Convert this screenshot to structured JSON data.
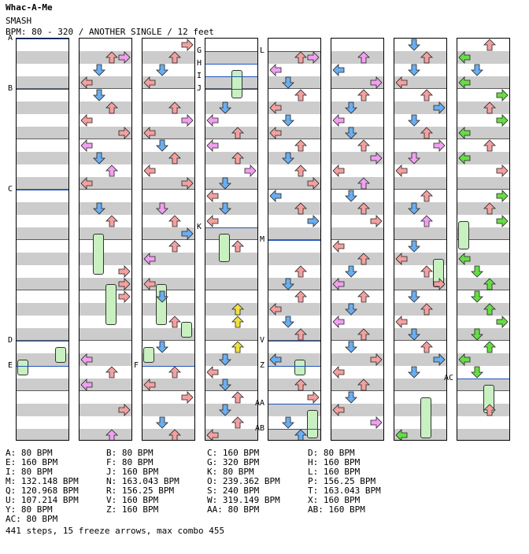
{
  "header": {
    "title": "Whac-A-Me",
    "subtitle": "SMASH",
    "info": "BPM: 80 - 320 / ANOTHER SINGLE / 12 feet"
  },
  "colors": {
    "left": "#f4a0a0",
    "down": "#6aaef0",
    "up": "#f4a0a0",
    "right": "#f4a0a0",
    "alt": "#f0a0f0",
    "green": "#66dd44",
    "yellow": "#f0e040"
  },
  "markers": [
    {
      "col": 0,
      "row": 0,
      "label": "A"
    },
    {
      "col": 0,
      "row": 4,
      "label": "B"
    },
    {
      "col": 0,
      "row": 12,
      "label": "C"
    },
    {
      "col": 0,
      "row": 24,
      "label": "D"
    },
    {
      "col": 0,
      "row": 26,
      "label": "E"
    },
    {
      "col": 2,
      "row": 26,
      "label": "F"
    },
    {
      "col": 3,
      "row": 1,
      "label": "G"
    },
    {
      "col": 3,
      "row": 2,
      "label": "H"
    },
    {
      "col": 3,
      "row": 3,
      "label": "I"
    },
    {
      "col": 3,
      "row": 4,
      "label": "J"
    },
    {
      "col": 3,
      "row": 15,
      "label": "K"
    },
    {
      "col": 4,
      "row": 1,
      "label": "L"
    },
    {
      "col": 4,
      "row": 16,
      "label": "M"
    },
    {
      "col": 4,
      "row": 24,
      "label": "V"
    },
    {
      "col": 4,
      "row": 26,
      "label": "Z"
    },
    {
      "col": 4,
      "row": 29,
      "label": "AA"
    },
    {
      "col": 4,
      "row": 31,
      "label": "AB"
    },
    {
      "col": 7,
      "row": 27,
      "label": "AC"
    }
  ],
  "arrows": [
    [
      1,
      1,
      "up",
      "red"
    ],
    [
      1,
      1,
      "right",
      "alt"
    ],
    [
      1,
      2,
      "down",
      "blue"
    ],
    [
      1,
      3,
      "left",
      "red"
    ],
    [
      1,
      4,
      "down",
      "blue"
    ],
    [
      1,
      5,
      "up",
      "red"
    ],
    [
      1,
      6,
      "left",
      "red"
    ],
    [
      1,
      7,
      "right",
      "red"
    ],
    [
      1,
      8,
      "left",
      "alt"
    ],
    [
      1,
      9,
      "down",
      "blue"
    ],
    [
      1,
      10,
      "up",
      "alt"
    ],
    [
      1,
      11,
      "left",
      "red"
    ],
    [
      1,
      13,
      "down",
      "blue"
    ],
    [
      1,
      14,
      "up",
      "red"
    ],
    [
      1,
      18,
      "right",
      "red"
    ],
    [
      1,
      19,
      "right",
      "red"
    ],
    [
      1,
      20,
      "right",
      "red"
    ],
    [
      1,
      25,
      "left",
      "alt"
    ],
    [
      1,
      26,
      "up",
      "red"
    ],
    [
      1,
      27,
      "left",
      "alt"
    ],
    [
      1,
      29,
      "right",
      "red"
    ],
    [
      1,
      31,
      "up",
      "alt"
    ],
    [
      2,
      0,
      "right",
      "red"
    ],
    [
      2,
      1,
      "up",
      "red"
    ],
    [
      2,
      2,
      "down",
      "blue"
    ],
    [
      2,
      3,
      "left",
      "red"
    ],
    [
      2,
      5,
      "up",
      "red"
    ],
    [
      2,
      6,
      "right",
      "alt"
    ],
    [
      2,
      7,
      "left",
      "red"
    ],
    [
      2,
      8,
      "down",
      "blue"
    ],
    [
      2,
      9,
      "up",
      "red"
    ],
    [
      2,
      10,
      "left",
      "red"
    ],
    [
      2,
      11,
      "right",
      "red"
    ],
    [
      2,
      13,
      "down",
      "alt"
    ],
    [
      2,
      14,
      "up",
      "red"
    ],
    [
      2,
      15,
      "right",
      "blue"
    ],
    [
      2,
      16,
      "up",
      "red"
    ],
    [
      2,
      17,
      "left",
      "alt"
    ],
    [
      2,
      19,
      "left",
      "red"
    ],
    [
      2,
      20,
      "down",
      "blue"
    ],
    [
      2,
      22,
      "up",
      "red"
    ],
    [
      2,
      24,
      "down",
      "blue"
    ],
    [
      2,
      26,
      "up",
      "red"
    ],
    [
      2,
      27,
      "left",
      "red"
    ],
    [
      2,
      28,
      "right",
      "red"
    ],
    [
      2,
      30,
      "down",
      "blue"
    ],
    [
      2,
      31,
      "up",
      "red"
    ],
    [
      3,
      5,
      "down",
      "blue"
    ],
    [
      3,
      6,
      "left",
      "alt"
    ],
    [
      3,
      7,
      "up",
      "red"
    ],
    [
      3,
      8,
      "left",
      "alt"
    ],
    [
      3,
      9,
      "up",
      "red"
    ],
    [
      3,
      10,
      "right",
      "alt"
    ],
    [
      3,
      11,
      "down",
      "blue"
    ],
    [
      3,
      12,
      "left",
      "red"
    ],
    [
      3,
      13,
      "down",
      "blue"
    ],
    [
      3,
      14,
      "left",
      "red"
    ],
    [
      3,
      16,
      "up",
      "red"
    ],
    [
      3,
      21,
      "up",
      "yellow"
    ],
    [
      3,
      22,
      "up",
      "yellow"
    ],
    [
      3,
      24,
      "up",
      "yellow"
    ],
    [
      3,
      25,
      "down",
      "blue"
    ],
    [
      3,
      26,
      "left",
      "red"
    ],
    [
      3,
      27,
      "down",
      "blue"
    ],
    [
      3,
      28,
      "up",
      "red"
    ],
    [
      3,
      29,
      "down",
      "blue"
    ],
    [
      3,
      30,
      "up",
      "red"
    ],
    [
      3,
      31,
      "left",
      "red"
    ],
    [
      4,
      1,
      "up",
      "red"
    ],
    [
      4,
      1,
      "right",
      "alt"
    ],
    [
      4,
      2,
      "left",
      "alt"
    ],
    [
      4,
      3,
      "down",
      "blue"
    ],
    [
      4,
      4,
      "up",
      "red"
    ],
    [
      4,
      5,
      "left",
      "red"
    ],
    [
      4,
      6,
      "down",
      "blue"
    ],
    [
      4,
      7,
      "left",
      "red"
    ],
    [
      4,
      8,
      "up",
      "red"
    ],
    [
      4,
      9,
      "down",
      "blue"
    ],
    [
      4,
      10,
      "up",
      "red"
    ],
    [
      4,
      11,
      "right",
      "red"
    ],
    [
      4,
      12,
      "left",
      "blue"
    ],
    [
      4,
      13,
      "up",
      "red"
    ],
    [
      4,
      14,
      "right",
      "blue"
    ],
    [
      4,
      18,
      "up",
      "red"
    ],
    [
      4,
      19,
      "down",
      "blue"
    ],
    [
      4,
      20,
      "up",
      "red"
    ],
    [
      4,
      21,
      "left",
      "red"
    ],
    [
      4,
      22,
      "down",
      "blue"
    ],
    [
      4,
      23,
      "up",
      "red"
    ],
    [
      4,
      25,
      "left",
      "blue"
    ],
    [
      4,
      27,
      "up",
      "red"
    ],
    [
      4,
      28,
      "right",
      "red"
    ],
    [
      4,
      30,
      "down",
      "blue"
    ],
    [
      4,
      31,
      "up",
      "blue"
    ],
    [
      5,
      1,
      "up",
      "alt"
    ],
    [
      5,
      2,
      "left",
      "blue"
    ],
    [
      5,
      3,
      "right",
      "alt"
    ],
    [
      5,
      4,
      "up",
      "red"
    ],
    [
      5,
      5,
      "down",
      "blue"
    ],
    [
      5,
      6,
      "left",
      "alt"
    ],
    [
      5,
      7,
      "down",
      "blue"
    ],
    [
      5,
      8,
      "up",
      "red"
    ],
    [
      5,
      9,
      "right",
      "alt"
    ],
    [
      5,
      10,
      "left",
      "red"
    ],
    [
      5,
      11,
      "up",
      "alt"
    ],
    [
      5,
      12,
      "down",
      "blue"
    ],
    [
      5,
      13,
      "up",
      "red"
    ],
    [
      5,
      14,
      "right",
      "red"
    ],
    [
      5,
      16,
      "left",
      "red"
    ],
    [
      5,
      17,
      "up",
      "red"
    ],
    [
      5,
      18,
      "down",
      "blue"
    ],
    [
      5,
      19,
      "left",
      "alt"
    ],
    [
      5,
      20,
      "up",
      "red"
    ],
    [
      5,
      21,
      "down",
      "blue"
    ],
    [
      5,
      22,
      "left",
      "alt"
    ],
    [
      5,
      23,
      "up",
      "red"
    ],
    [
      5,
      24,
      "down",
      "blue"
    ],
    [
      5,
      25,
      "right",
      "red"
    ],
    [
      5,
      26,
      "left",
      "red"
    ],
    [
      5,
      27,
      "up",
      "red"
    ],
    [
      5,
      28,
      "down",
      "blue"
    ],
    [
      5,
      29,
      "left",
      "red"
    ],
    [
      5,
      30,
      "right",
      "alt"
    ],
    [
      6,
      0,
      "down",
      "blue"
    ],
    [
      6,
      1,
      "up",
      "red"
    ],
    [
      6,
      2,
      "down",
      "blue"
    ],
    [
      6,
      3,
      "left",
      "red"
    ],
    [
      6,
      4,
      "up",
      "red"
    ],
    [
      6,
      5,
      "right",
      "blue"
    ],
    [
      6,
      6,
      "down",
      "blue"
    ],
    [
      6,
      7,
      "up",
      "red"
    ],
    [
      6,
      8,
      "right",
      "alt"
    ],
    [
      6,
      9,
      "down",
      "alt"
    ],
    [
      6,
      10,
      "left",
      "red"
    ],
    [
      6,
      12,
      "up",
      "red"
    ],
    [
      6,
      13,
      "down",
      "blue"
    ],
    [
      6,
      14,
      "up",
      "alt"
    ],
    [
      6,
      16,
      "down",
      "blue"
    ],
    [
      6,
      17,
      "left",
      "red"
    ],
    [
      6,
      18,
      "up",
      "red"
    ],
    [
      6,
      19,
      "right",
      "red"
    ],
    [
      6,
      20,
      "down",
      "blue"
    ],
    [
      6,
      21,
      "up",
      "red"
    ],
    [
      6,
      22,
      "left",
      "red"
    ],
    [
      6,
      23,
      "down",
      "blue"
    ],
    [
      6,
      24,
      "up",
      "red"
    ],
    [
      6,
      25,
      "right",
      "blue"
    ],
    [
      6,
      26,
      "down",
      "blue"
    ],
    [
      6,
      31,
      "left",
      "green"
    ],
    [
      7,
      0,
      "up",
      "red"
    ],
    [
      7,
      1,
      "left",
      "green"
    ],
    [
      7,
      2,
      "down",
      "blue"
    ],
    [
      7,
      3,
      "left",
      "green"
    ],
    [
      7,
      4,
      "right",
      "green"
    ],
    [
      7,
      5,
      "up",
      "red"
    ],
    [
      7,
      6,
      "right",
      "green"
    ],
    [
      7,
      7,
      "left",
      "green"
    ],
    [
      7,
      8,
      "up",
      "red"
    ],
    [
      7,
      9,
      "left",
      "green"
    ],
    [
      7,
      10,
      "right",
      "red"
    ],
    [
      7,
      12,
      "right",
      "green"
    ],
    [
      7,
      13,
      "up",
      "red"
    ],
    [
      7,
      14,
      "right",
      "green"
    ],
    [
      7,
      17,
      "left",
      "green"
    ],
    [
      7,
      18,
      "down",
      "green"
    ],
    [
      7,
      19,
      "up",
      "green"
    ],
    [
      7,
      20,
      "down",
      "green"
    ],
    [
      7,
      21,
      "up",
      "green"
    ],
    [
      7,
      22,
      "right",
      "green"
    ],
    [
      7,
      23,
      "down",
      "green"
    ],
    [
      7,
      24,
      "up",
      "green"
    ],
    [
      7,
      25,
      "left",
      "green"
    ],
    [
      7,
      26,
      "down",
      "green"
    ],
    [
      7,
      29,
      "up",
      "red"
    ]
  ],
  "freezes": [
    [
      1,
      15,
      18,
      1
    ],
    [
      1,
      19,
      22,
      2
    ],
    [
      2,
      19,
      22,
      1
    ],
    [
      2,
      22,
      23,
      3
    ],
    [
      3,
      2,
      4,
      2
    ],
    [
      3,
      15,
      17,
      1
    ],
    [
      4,
      25,
      26,
      2
    ],
    [
      6,
      17,
      19,
      3
    ],
    [
      6,
      28,
      31,
      2
    ],
    [
      7,
      14,
      16,
      0
    ],
    [
      7,
      27,
      29,
      2
    ],
    [
      0,
      24,
      25,
      3
    ],
    [
      0,
      25,
      26,
      0
    ],
    [
      2,
      24,
      25,
      0
    ],
    [
      4,
      29,
      31,
      3
    ]
  ],
  "legend": [
    [
      "A: 80 BPM",
      "B: 80 BPM",
      "C: 160 BPM",
      "D: 80 BPM"
    ],
    [
      "E: 160 BPM",
      "F: 80 BPM",
      "G: 320 BPM",
      "H: 160 BPM"
    ],
    [
      "I: 80 BPM",
      "J: 160 BPM",
      "K: 80 BPM",
      "L: 160 BPM"
    ],
    [
      "M: 132.148 BPM",
      "N: 163.043 BPM",
      "O: 239.362 BPM",
      "P: 156.25 BPM"
    ],
    [
      "Q: 120.968 BPM",
      "R: 156.25 BPM",
      "S: 240 BPM",
      "T: 163.043 BPM"
    ],
    [
      "U: 107.214 BPM",
      "V: 160 BPM",
      "W: 319.149 BPM",
      "X: 160 BPM"
    ],
    [
      "Y: 80 BPM",
      "Z: 160 BPM",
      "AA: 80 BPM",
      "AB: 160 BPM"
    ],
    [
      "AC: 80 BPM",
      "",
      "",
      ""
    ]
  ],
  "summary": "441 steps, 15 freeze arrows, max combo 455"
}
